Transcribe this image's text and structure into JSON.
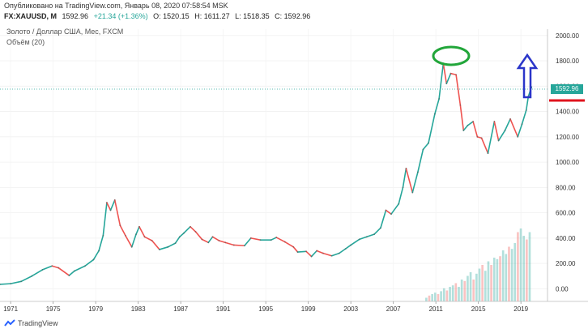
{
  "header": {
    "published": "Опубликовано на TradingView.com, Январь 08, 2020 07:58:54 MSK",
    "symbol": "FX:XAUUSD, M",
    "last": "1592.96",
    "change": "+21.34 (+1.36%)",
    "open": "O: 1520.15",
    "high": "H: 1611.27",
    "low": "L: 1518.35",
    "close": "C: 1592.96"
  },
  "subtitle": "Золото / Доллар США, Мес, FXCM",
  "volume_label": "Объём (20)",
  "price_tag": "1592.96",
  "footer": {
    "brand": "TradingView"
  },
  "colors": {
    "up": "#26a69a",
    "down": "#ef5350",
    "annotation_ellipse": "#22a63a",
    "annotation_arrow": "#2a35c9",
    "annotation_line": "#e0141e"
  },
  "chart_data": {
    "type": "line",
    "x_ticks": [
      "1971",
      "1975",
      "1979",
      "1983",
      "1987",
      "1991",
      "1995",
      "1999",
      "2003",
      "2007",
      "2011",
      "2015",
      "2019"
    ],
    "y_ticks": [
      "2000.00",
      "1800.00",
      "1600.00",
      "1400.00",
      "1200.00",
      "1000.00",
      "800.00",
      "600.00",
      "400.00",
      "200.00",
      "0.00"
    ],
    "ylim": [
      -100,
      2050
    ],
    "xlim": [
      1970.0,
      2021.5
    ],
    "last_price": 1592.96,
    "series": [
      {
        "points": [
          [
            1970.0,
            35
          ],
          [
            1971.0,
            40
          ],
          [
            1972.0,
            58
          ],
          [
            1973.0,
            100
          ],
          [
            1974.0,
            150
          ],
          [
            1974.9,
            180
          ],
          [
            1975.5,
            165
          ],
          [
            1976.5,
            105
          ],
          [
            1977.0,
            140
          ],
          [
            1978.0,
            180
          ],
          [
            1978.8,
            230
          ],
          [
            1979.3,
            300
          ],
          [
            1979.7,
            420
          ],
          [
            1980.05,
            680
          ],
          [
            1980.4,
            620
          ],
          [
            1980.8,
            700
          ],
          [
            1981.3,
            500
          ],
          [
            1981.8,
            420
          ],
          [
            1982.4,
            330
          ],
          [
            1982.8,
            430
          ],
          [
            1983.1,
            490
          ],
          [
            1983.6,
            410
          ],
          [
            1984.3,
            380
          ],
          [
            1985.0,
            310
          ],
          [
            1985.8,
            330
          ],
          [
            1986.5,
            360
          ],
          [
            1986.9,
            410
          ],
          [
            1987.3,
            440
          ],
          [
            1987.9,
            490
          ],
          [
            1988.4,
            450
          ],
          [
            1989.0,
            390
          ],
          [
            1989.6,
            365
          ],
          [
            1990.0,
            410
          ],
          [
            1990.6,
            380
          ],
          [
            1991.2,
            365
          ],
          [
            1992.0,
            345
          ],
          [
            1993.0,
            340
          ],
          [
            1993.6,
            400
          ],
          [
            1994.5,
            385
          ],
          [
            1995.5,
            385
          ],
          [
            1996.0,
            405
          ],
          [
            1996.8,
            370
          ],
          [
            1997.6,
            330
          ],
          [
            1998.0,
            290
          ],
          [
            1998.8,
            295
          ],
          [
            1999.3,
            255
          ],
          [
            1999.8,
            300
          ],
          [
            2000.4,
            280
          ],
          [
            2001.2,
            260
          ],
          [
            2001.9,
            280
          ],
          [
            2002.5,
            315
          ],
          [
            2003.0,
            345
          ],
          [
            2003.8,
            390
          ],
          [
            2004.5,
            410
          ],
          [
            2005.2,
            430
          ],
          [
            2005.8,
            480
          ],
          [
            2006.3,
            620
          ],
          [
            2006.8,
            590
          ],
          [
            2007.5,
            670
          ],
          [
            2007.9,
            800
          ],
          [
            2008.2,
            950
          ],
          [
            2008.8,
            760
          ],
          [
            2009.3,
            920
          ],
          [
            2009.8,
            1100
          ],
          [
            2010.3,
            1150
          ],
          [
            2010.9,
            1380
          ],
          [
            2011.3,
            1500
          ],
          [
            2011.7,
            1780
          ],
          [
            2012.0,
            1620
          ],
          [
            2012.4,
            1700
          ],
          [
            2012.9,
            1690
          ],
          [
            2013.3,
            1450
          ],
          [
            2013.6,
            1250
          ],
          [
            2014.0,
            1290
          ],
          [
            2014.5,
            1320
          ],
          [
            2014.9,
            1200
          ],
          [
            2015.3,
            1190
          ],
          [
            2015.9,
            1070
          ],
          [
            2016.5,
            1320
          ],
          [
            2016.9,
            1170
          ],
          [
            2017.5,
            1250
          ],
          [
            2018.0,
            1340
          ],
          [
            2018.7,
            1200
          ],
          [
            2019.1,
            1300
          ],
          [
            2019.5,
            1410
          ],
          [
            2019.7,
            1520
          ],
          [
            2020.0,
            1593
          ]
        ]
      }
    ],
    "volume": {
      "start": 2010.0,
      "end": 2020.0,
      "values": [
        0.05,
        0.08,
        0.1,
        0.12,
        0.1,
        0.14,
        0.18,
        0.15,
        0.2,
        0.22,
        0.25,
        0.2,
        0.3,
        0.28,
        0.35,
        0.4,
        0.3,
        0.38,
        0.45,
        0.5,
        0.42,
        0.55,
        0.5,
        0.6,
        0.58,
        0.62,
        0.7,
        0.65,
        0.75,
        0.72,
        0.8,
        0.95,
        1.0,
        0.9,
        0.85,
        0.95
      ]
    }
  }
}
